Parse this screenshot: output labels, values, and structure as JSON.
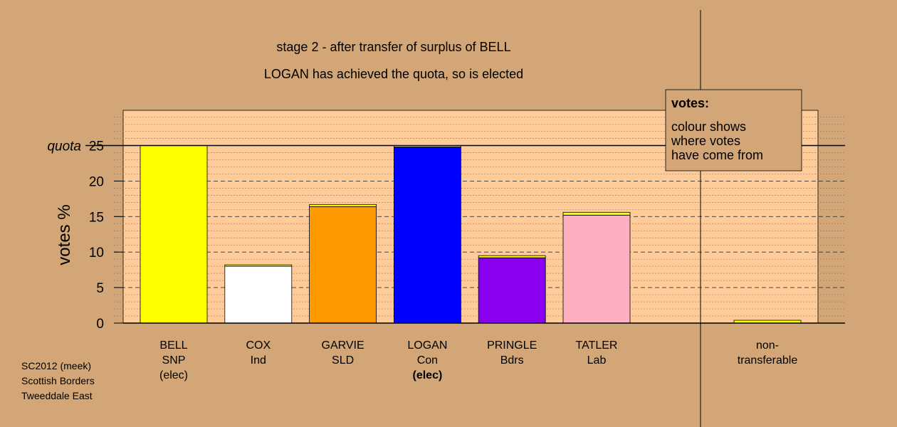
{
  "chart_data": {
    "type": "bar",
    "title_lines": [
      "stage 2 - after transfer of surplus of BELL",
      "LOGAN has achieved the quota, so is elected"
    ],
    "ylabel": "votes %",
    "ylim": [
      0,
      30
    ],
    "yticks": [
      0,
      5,
      10,
      15,
      20,
      25
    ],
    "quota": {
      "label": "quota",
      "value": 25
    },
    "grid": "dashed major, dotted minor",
    "categories": [
      {
        "lines": [
          "BELL",
          "SNP",
          "(elec)"
        ],
        "bold_line": -1
      },
      {
        "lines": [
          "COX",
          "Ind"
        ],
        "bold_line": -1
      },
      {
        "lines": [
          "GARVIE",
          "SLD"
        ],
        "bold_line": -1
      },
      {
        "lines": [
          "LOGAN",
          "Con",
          "(elec)"
        ],
        "bold_line": 2
      },
      {
        "lines": [
          "PRINGLE",
          "Bdrs"
        ],
        "bold_line": -1
      },
      {
        "lines": [
          "TATLER",
          "Lab"
        ],
        "bold_line": -1
      }
    ],
    "nontransferable": {
      "lines": [
        "non-",
        "transferable"
      ],
      "value": 0.4,
      "color": "#ffff00"
    },
    "series": [
      {
        "base_value": 25.0,
        "transfer_value": 0.0,
        "color": "#ffff00"
      },
      {
        "base_value": 8.0,
        "transfer_value": 0.2,
        "color": "#ffffff"
      },
      {
        "base_value": 16.4,
        "transfer_value": 0.3,
        "color": "#ff9900"
      },
      {
        "base_value": 24.8,
        "transfer_value": 0.2,
        "color": "#0000ff"
      },
      {
        "base_value": 9.2,
        "transfer_value": 0.3,
        "color": "#8800ee"
      },
      {
        "base_value": 15.2,
        "transfer_value": 0.4,
        "color": "#ffb0c0"
      }
    ],
    "legend": {
      "title": "votes:",
      "lines": [
        "colour shows",
        "where votes",
        "have come from"
      ],
      "placement": "top-right"
    },
    "colors": {
      "background": "#d2a677",
      "plot_area": "#ffcc99",
      "legend_bg": "#d2a677"
    }
  },
  "footnote": [
    "SC2012 (meek)",
    "Scottish Borders",
    "Tweeddale East"
  ]
}
